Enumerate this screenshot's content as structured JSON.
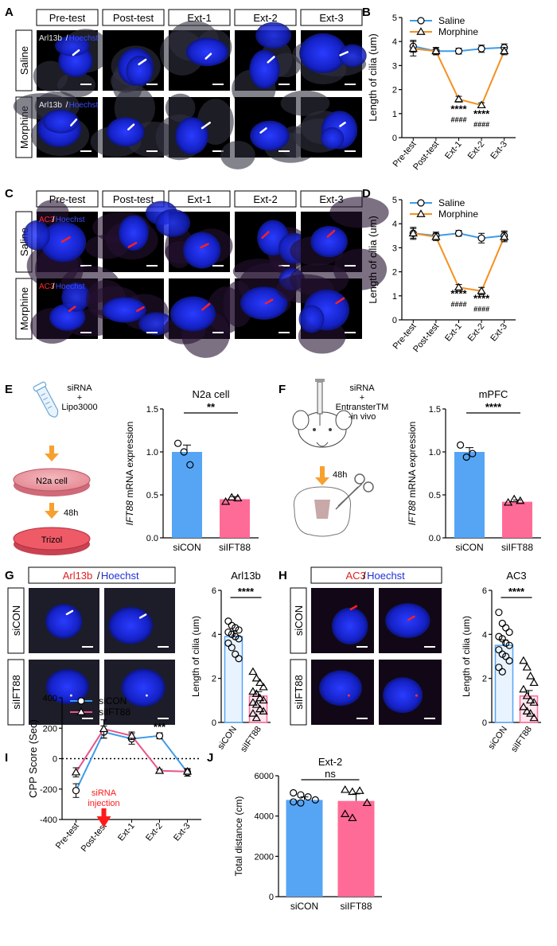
{
  "panels": {
    "A": {
      "letter": "A",
      "col_labels": [
        "Pre-test",
        "Post-test",
        "Ext-1",
        "Ext-2",
        "Ext-3"
      ],
      "row_labels": [
        "Saline",
        "Morphine"
      ],
      "stain_a": "Arl13b",
      "stain_sep": "/",
      "stain_b": "Hoechst",
      "stain_a_color": "#e8e8e8"
    },
    "C": {
      "letter": "C",
      "col_labels": [
        "Pre-test",
        "Post-test",
        "Ext-1",
        "Ext-2",
        "Ext-3"
      ],
      "row_labels": [
        "Saline",
        "Morphine"
      ],
      "stain_a": "AC3",
      "stain_sep": "/",
      "stain_b": "Hoechst",
      "stain_a_color": "#ff2a2a"
    },
    "E": {
      "letter": "E",
      "schematic": {
        "reagent": "siRNA",
        "plus": "+",
        "reagent2": "Lipo3000",
        "cell": "N2a cell",
        "time": "48h",
        "end": "Trizol"
      }
    },
    "F": {
      "letter": "F",
      "schematic": {
        "reagent": "siRNA",
        "plus": "+",
        "reagent2": "EntransterTM",
        "reagent3": "-in vivo",
        "time": "48h"
      }
    },
    "G": {
      "letter": "G",
      "header_a": "Arl13b",
      "header_sep": "/",
      "header_b": "Hoechst",
      "row_labels": [
        "siCON",
        "siIFT88"
      ]
    },
    "H": {
      "letter": "H",
      "header_a": "AC3",
      "header_sep": "/",
      "header_b": "Hoechst",
      "row_labels": [
        "siCON",
        "siIFT88"
      ]
    },
    "I": {
      "letter": "I",
      "annotation": "siRNA\ninjection"
    },
    "J": {
      "letter": "J"
    }
  },
  "colors": {
    "saline": "#3d9be9",
    "morphine": "#f5901f",
    "sicon_bar": "#56a5f5",
    "siift88_bar": "#ff6b97",
    "siift88_line": "#e8558a",
    "arrow_orange": "#f7a030",
    "arrow_red": "#ff1a1a",
    "micro_blue": "#1f2fd6"
  },
  "chart_data": [
    {
      "id": "B",
      "letter": "B",
      "type": "line",
      "categories": [
        "Pre-test",
        "Post-test",
        "Ext-1",
        "Ext-2",
        "Ext-3"
      ],
      "ylabel": "Length of cilia (um)",
      "ylim": [
        0,
        5
      ],
      "yticks": [
        "0",
        "1",
        "2",
        "3",
        "4",
        "5"
      ],
      "series": [
        {
          "name": "Saline",
          "values": [
            3.8,
            3.6,
            3.6,
            3.7,
            3.75
          ],
          "err": [
            0.25,
            0.15,
            0.12,
            0.15,
            0.15
          ],
          "marker": "circle"
        },
        {
          "name": "Morphine",
          "values": [
            3.7,
            3.6,
            1.6,
            1.35,
            3.6
          ],
          "err": [
            0.3,
            0.15,
            0.12,
            0.1,
            0.15
          ],
          "marker": "triangle"
        }
      ],
      "annotations": [
        {
          "cat": 2,
          "y": 1.05,
          "text": "****"
        },
        {
          "cat": 2,
          "y": 0.65,
          "text": "####"
        },
        {
          "cat": 3,
          "y": 0.85,
          "text": "****"
        },
        {
          "cat": 3,
          "y": 0.45,
          "text": "####"
        }
      ],
      "legend": "top-left"
    },
    {
      "id": "D",
      "letter": "D",
      "type": "line",
      "categories": [
        "Pre-test",
        "Post-test",
        "Ext-1",
        "Ext-2",
        "Ext-3"
      ],
      "ylabel": "Length of cilia (um)",
      "ylim": [
        0,
        5
      ],
      "yticks": [
        "0",
        "1",
        "2",
        "3",
        "4",
        "5"
      ],
      "series": [
        {
          "name": "Saline",
          "values": [
            3.6,
            3.5,
            3.6,
            3.4,
            3.5
          ],
          "err": [
            0.2,
            0.15,
            0.12,
            0.2,
            0.2
          ],
          "marker": "circle"
        },
        {
          "name": "Morphine",
          "values": [
            3.6,
            3.45,
            1.35,
            1.2,
            3.45
          ],
          "err": [
            0.25,
            0.15,
            0.12,
            0.15,
            0.2
          ],
          "marker": "triangle"
        }
      ],
      "annotations": [
        {
          "cat": 2,
          "y": 0.95,
          "text": "****"
        },
        {
          "cat": 2,
          "y": 0.55,
          "text": "####"
        },
        {
          "cat": 3,
          "y": 0.75,
          "text": "****"
        },
        {
          "cat": 3,
          "y": 0.35,
          "text": "####"
        }
      ],
      "legend": "top-left"
    },
    {
      "id": "E",
      "type": "bar",
      "title": "N2a cell",
      "categories": [
        "siCON",
        "siIFT88"
      ],
      "values": [
        1.0,
        0.45
      ],
      "err": [
        0.08,
        0.03
      ],
      "points": [
        [
          1.1,
          1.0,
          0.85
        ],
        [
          0.42,
          0.47,
          0.46
        ]
      ],
      "markers": [
        "circle",
        "triangle"
      ],
      "ylabel_italic": "IFT88",
      "ylabel_rest": " mRNA expression",
      "ylim": [
        0,
        1.5
      ],
      "yticks": [
        "0.0",
        "0.5",
        "1.0",
        "1.5"
      ],
      "significance": "**"
    },
    {
      "id": "F",
      "type": "bar",
      "title": "mPFC",
      "categories": [
        "siCON",
        "siIFT88"
      ],
      "values": [
        1.0,
        0.42
      ],
      "err": [
        0.05,
        0.02
      ],
      "points": [
        [
          1.08,
          0.94,
          0.98
        ],
        [
          0.41,
          0.45,
          0.43
        ]
      ],
      "markers": [
        "circle",
        "triangle"
      ],
      "ylabel_italic": "IFT88",
      "ylabel_rest": " mRNA expression",
      "ylim": [
        0,
        1.5
      ],
      "yticks": [
        "0.0",
        "0.5",
        "1.0",
        "1.5"
      ],
      "significance": "****"
    },
    {
      "id": "G",
      "type": "bar",
      "title": "Arl13b",
      "categories": [
        "siCON",
        "siIFT88"
      ],
      "values": [
        3.9,
        1.2
      ],
      "err": [
        0.25,
        0.2
      ],
      "points": [
        [
          4.6,
          4.4,
          4.3,
          4.2,
          4.1,
          4.0,
          3.9,
          3.8,
          3.6,
          3.4,
          3.1,
          2.9
        ],
        [
          2.3,
          2.0,
          1.8,
          1.6,
          1.4,
          1.3,
          1.1,
          1.0,
          0.9,
          0.8,
          0.6,
          0.5,
          0.4,
          0.2
        ]
      ],
      "markers": [
        "circle",
        "triangle"
      ],
      "ylabel": "Length of cilia (um)",
      "ylim": [
        0,
        6
      ],
      "yticks": [
        "0",
        "2",
        "4",
        "6"
      ],
      "significance": "****",
      "outline_only": true
    },
    {
      "id": "H",
      "type": "bar",
      "title": "AC3",
      "categories": [
        "siCON",
        "siIFT88"
      ],
      "values": [
        3.5,
        1.2
      ],
      "err": [
        0.25,
        0.25
      ],
      "points": [
        [
          5.0,
          4.5,
          4.3,
          4.1,
          3.9,
          3.8,
          3.6,
          3.5,
          3.3,
          3.1,
          3.0,
          2.8,
          2.5,
          2.3
        ],
        [
          2.8,
          2.5,
          2.1,
          1.8,
          1.5,
          1.2,
          1.0,
          0.9,
          0.7,
          0.5,
          0.4,
          0.2
        ]
      ],
      "markers": [
        "circle",
        "triangle"
      ],
      "ylabel": "Length of cilia (um)",
      "ylim": [
        0,
        6
      ],
      "yticks": [
        "0",
        "2",
        "4",
        "6"
      ],
      "significance": "****",
      "outline_only": true
    },
    {
      "id": "I",
      "letter": "I",
      "type": "line",
      "categories": [
        "Pre-test",
        "Post-test",
        "Ext-1",
        "Ext-2",
        "Ext-3"
      ],
      "ylabel": "CPP Score (Sec)",
      "ylim": [
        -400,
        400
      ],
      "yticks": [
        "-400",
        "-200",
        "0",
        "200",
        "400"
      ],
      "series": [
        {
          "name": "siCON",
          "values": [
            -210,
            175,
            130,
            150,
            -90
          ],
          "err": [
            45,
            40,
            35,
            20,
            25
          ],
          "marker": "circle"
        },
        {
          "name": "siIFT88",
          "values": [
            -90,
            195,
            150,
            -80,
            -85
          ],
          "err": [
            30,
            60,
            25,
            10,
            15
          ],
          "marker": "triangle"
        }
      ],
      "annotations": [
        {
          "cat": 3,
          "y": 185,
          "text": "***"
        }
      ],
      "legend": "top-left",
      "zero_line": "dotted"
    },
    {
      "id": "J",
      "letter": "J",
      "type": "bar",
      "title": "Ext-2",
      "categories": [
        "siCON",
        "siIFT88"
      ],
      "values": [
        4800,
        4750
      ],
      "err": [
        150,
        350
      ],
      "points": [
        [
          5150,
          5050,
          4950,
          4800,
          4700,
          4650
        ],
        [
          5300,
          5200,
          5250,
          4650,
          4100,
          3900
        ]
      ],
      "markers": [
        "circle",
        "triangle"
      ],
      "ylabel": "Total distance (cm)",
      "ylim": [
        0,
        6000
      ],
      "yticks": [
        "0",
        "2000",
        "4000",
        "6000"
      ],
      "significance": "ns"
    }
  ]
}
